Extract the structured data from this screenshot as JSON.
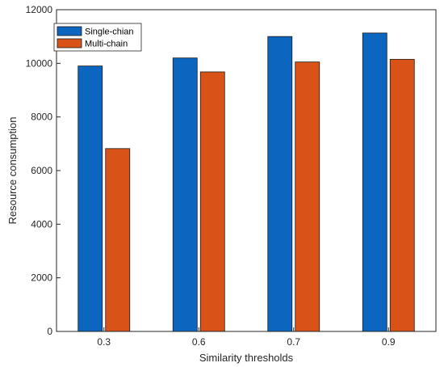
{
  "chart_data": {
    "type": "bar",
    "categories": [
      "0.3",
      "0.6",
      "0.7",
      "0.9"
    ],
    "series": [
      {
        "name": "Single-chian",
        "values": [
          9900,
          10200,
          11000,
          11130
        ]
      },
      {
        "name": "Multi-chain",
        "values": [
          6820,
          9680,
          10050,
          10150
        ]
      }
    ],
    "xlabel": "Similarity thresholds",
    "ylabel": "Resource consumption",
    "ylim": [
      0,
      12000
    ],
    "yticks": [
      0,
      2000,
      4000,
      6000,
      8000,
      10000,
      12000
    ],
    "grid": false,
    "legend_position": "top-left",
    "colors": [
      "#0c65bf",
      "#d95319"
    ]
  }
}
